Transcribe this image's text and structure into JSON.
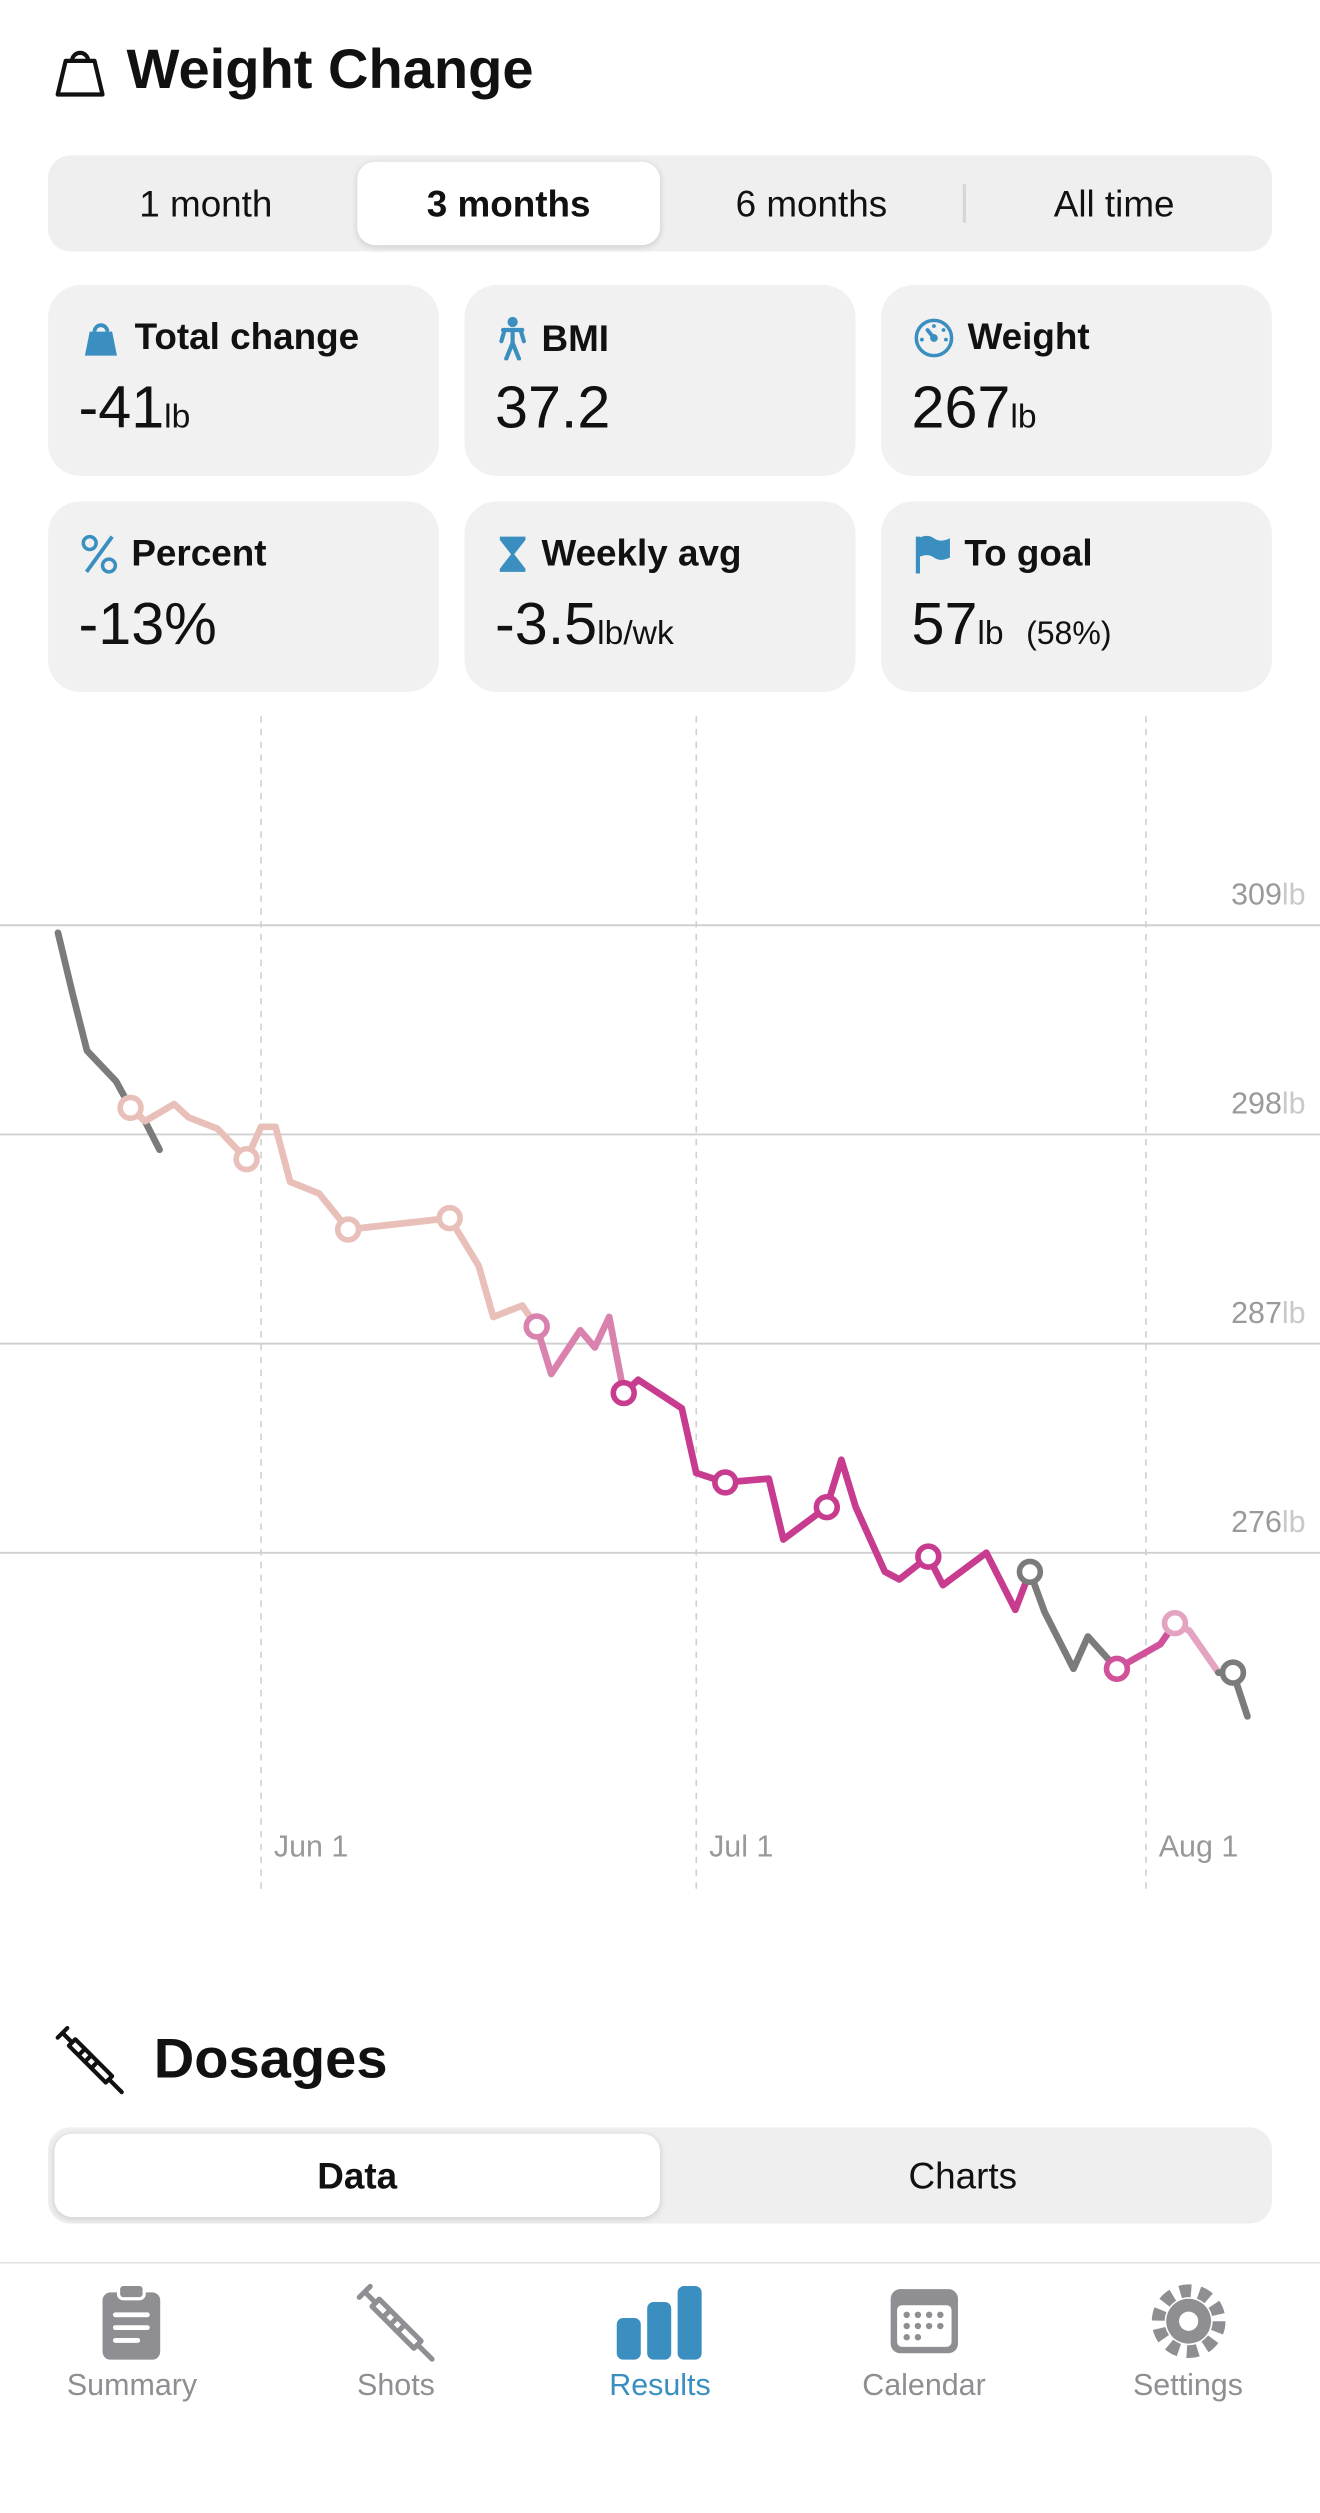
{
  "header": {
    "title": "Weight Change"
  },
  "range_tabs": {
    "options": [
      "1 month",
      "3 months",
      "6 months",
      "All time"
    ],
    "selected": 1
  },
  "stats": [
    {
      "label": "Total change",
      "value": "-41",
      "unit": "lb"
    },
    {
      "label": "BMI",
      "value": "37.2"
    },
    {
      "label": "Weight",
      "value": "267",
      "unit": "lb"
    },
    {
      "label": "Percent",
      "value": "-13%"
    },
    {
      "label": "Weekly avg",
      "value": "-3.5",
      "unit": "lb/wk"
    },
    {
      "label": "To goal",
      "value": "57",
      "unit": "lb",
      "note": "(58%)"
    }
  ],
  "chart_data": {
    "type": "line",
    "xlim": [
      "05-14",
      "08-13"
    ],
    "ylim": [
      258,
      320
    ],
    "xticks": [
      {
        "value": "06-01",
        "label": "Jun 1"
      },
      {
        "value": "07-01",
        "label": "Jul 1"
      },
      {
        "value": "08-01",
        "label": "Aug 1"
      }
    ],
    "yticks": [
      276,
      287,
      298,
      309
    ],
    "y_unit": "lb",
    "grid": true,
    "series": [
      {
        "color": "#7b7b7b",
        "x": [
          "05-18",
          "05-19",
          "05-20",
          "05-22",
          "05-23",
          "05-24",
          "05-25"
        ],
        "values": [
          308.6,
          305.4,
          302.4,
          300.8,
          299.4,
          298.7,
          297.2
        ],
        "dose_x": [],
        "dose_values": []
      },
      {
        "color": "#e9c0b9",
        "x": [
          "05-23",
          "05-24",
          "05-26",
          "05-27",
          "05-29",
          "05-31",
          "06-01",
          "06-02",
          "06-03",
          "06-05",
          "06-07",
          "06-14",
          "06-16",
          "06-17",
          "06-19",
          "06-20"
        ],
        "values": [
          299.4,
          298.7,
          299.6,
          298.9,
          298.3,
          296.7,
          298.4,
          298.4,
          295.5,
          294.9,
          293.0,
          293.6,
          291.1,
          288.4,
          289.0,
          287.9
        ],
        "dose_x": [
          "05-23",
          "05-31",
          "06-07",
          "06-14"
        ],
        "dose_values": [
          299.4,
          296.7,
          293.0,
          293.6
        ]
      },
      {
        "color": "#d982ad",
        "x": [
          "06-20",
          "06-21",
          "06-23",
          "06-24",
          "06-25",
          "06-26"
        ],
        "values": [
          287.9,
          285.4,
          287.7,
          286.8,
          288.4,
          284.4
        ],
        "dose_x": [
          "06-20"
        ],
        "dose_values": [
          287.9
        ]
      },
      {
        "color": "#c73c8e",
        "x": [
          "06-26",
          "06-27",
          "06-30",
          "07-01",
          "07-03",
          "07-06",
          "07-07",
          "07-10",
          "07-11",
          "07-12",
          "07-14",
          "07-15",
          "07-17",
          "07-18",
          "07-21",
          "07-23",
          "07-24"
        ],
        "values": [
          284.4,
          285.1,
          283.6,
          280.2,
          279.7,
          279.9,
          276.7,
          278.4,
          280.9,
          278.4,
          275.0,
          274.6,
          275.8,
          274.3,
          276.0,
          273.0,
          275.0
        ],
        "dose_x": [
          "06-26",
          "07-03",
          "07-10",
          "07-17"
        ],
        "dose_values": [
          284.4,
          279.7,
          278.4,
          275.8
        ]
      },
      {
        "color": "#7b7b7b",
        "x": [
          "07-24",
          "07-25",
          "07-27",
          "07-28",
          "07-30"
        ],
        "values": [
          275.0,
          272.9,
          269.9,
          271.6,
          269.9
        ],
        "dose_x": [
          "07-24"
        ],
        "dose_values": [
          275.0
        ]
      },
      {
        "color": "#cf529a",
        "x": [
          "07-30",
          "08-02",
          "08-03"
        ],
        "values": [
          269.9,
          271.2,
          272.3
        ],
        "dose_x": [
          "07-30"
        ],
        "dose_values": [
          269.9
        ]
      },
      {
        "color": "#e4a3c1",
        "x": [
          "08-03",
          "08-04",
          "08-06"
        ],
        "values": [
          272.3,
          271.9,
          269.7
        ],
        "dose_x": [
          "08-03"
        ],
        "dose_values": [
          272.3
        ]
      },
      {
        "color": "#7b7b7b",
        "x": [
          "08-06",
          "08-07",
          "08-08"
        ],
        "values": [
          269.7,
          269.7,
          267.4
        ],
        "dose_x": [
          "08-07"
        ],
        "dose_values": [
          269.7
        ]
      }
    ]
  },
  "dosages": {
    "title": "Dosages",
    "tabs": [
      "Data",
      "Charts"
    ],
    "selected": 0
  },
  "tab_bar": {
    "items": [
      "Summary",
      "Shots",
      "Results",
      "Calendar",
      "Settings"
    ],
    "selected": 2
  }
}
